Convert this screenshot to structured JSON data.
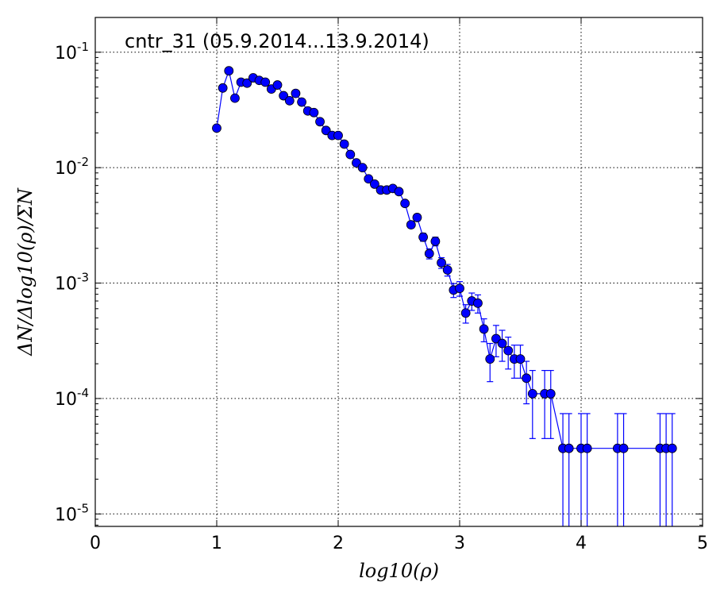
{
  "chart_data": {
    "type": "scatter",
    "title": "cntr_31 (05.9.2014...13.9.2014)",
    "xlabel": "log10(ρ)",
    "ylabel": "ΔN/Δlog10(ρ)/ΣN",
    "xlim": [
      0,
      5
    ],
    "ylim": [
      7.8e-06,
      0.2
    ],
    "yscale": "log",
    "grid": true,
    "marker": "circle",
    "colors": {
      "series": "#0000ff",
      "axes": "#000000",
      "background": "#ffffff"
    },
    "x_ticks": [
      {
        "value": 0,
        "label": "0"
      },
      {
        "value": 1,
        "label": "1"
      },
      {
        "value": 2,
        "label": "2"
      },
      {
        "value": 3,
        "label": "3"
      },
      {
        "value": 4,
        "label": "4"
      },
      {
        "value": 5,
        "label": "5"
      }
    ],
    "y_ticks": [
      {
        "value": 0.1,
        "base": "10",
        "exp": "-1"
      },
      {
        "value": 0.01,
        "base": "10",
        "exp": "-2"
      },
      {
        "value": 0.001,
        "base": "10",
        "exp": "-3"
      },
      {
        "value": 0.0001,
        "base": "10",
        "exp": "-4"
      },
      {
        "value": 1e-05,
        "base": "10",
        "exp": "-5"
      }
    ],
    "series": [
      {
        "x": [
          1.0,
          1.05,
          1.1,
          1.15,
          1.2,
          1.25,
          1.3,
          1.35,
          1.4,
          1.45,
          1.5,
          1.55,
          1.6,
          1.65,
          1.7,
          1.75,
          1.8,
          1.85,
          1.9,
          1.95,
          2.0,
          2.05,
          2.1,
          2.15,
          2.2,
          2.25,
          2.3,
          2.35,
          2.4,
          2.45,
          2.5,
          2.55,
          2.6,
          2.65,
          2.7,
          2.75,
          2.8,
          2.85,
          2.9,
          2.95,
          3.0,
          3.05,
          3.1,
          3.15,
          3.2,
          3.25,
          3.3,
          3.35,
          3.4,
          3.45,
          3.5,
          3.55,
          3.6,
          3.7,
          3.75,
          3.85,
          3.9,
          4.0,
          4.05,
          4.3,
          4.35,
          4.65,
          4.7,
          4.75
        ],
        "y": [
          0.022,
          0.049,
          0.069,
          0.04,
          0.055,
          0.054,
          0.06,
          0.057,
          0.055,
          0.048,
          0.052,
          0.042,
          0.038,
          0.044,
          0.037,
          0.031,
          0.03,
          0.025,
          0.021,
          0.019,
          0.019,
          0.016,
          0.013,
          0.011,
          0.01,
          0.008,
          0.0072,
          0.0064,
          0.0064,
          0.0066,
          0.0062,
          0.0049,
          0.0032,
          0.0037,
          0.0025,
          0.0018,
          0.0023,
          0.0015,
          0.0013,
          0.00087,
          0.0009,
          0.00055,
          0.0007,
          0.00067,
          0.0004,
          0.00022,
          0.00033,
          0.0003,
          0.00026,
          0.00022,
          0.00022,
          0.00015,
          0.00011,
          0.00011,
          0.00011,
          3.7e-05,
          3.7e-05,
          3.7e-05,
          3.7e-05,
          3.7e-05,
          3.7e-05,
          3.7e-05,
          3.7e-05,
          3.7e-05
        ],
        "err": [
          0.001,
          0.0015,
          0.002,
          0.0015,
          0.0015,
          0.0015,
          0.0015,
          0.0015,
          0.0015,
          0.0013,
          0.0014,
          0.0012,
          0.0011,
          0.0012,
          0.0011,
          0.001,
          0.001,
          0.0009,
          0.0008,
          0.0007,
          0.0007,
          0.0006,
          0.0005,
          0.0005,
          0.0004,
          0.0004,
          0.0003,
          0.0003,
          0.0003,
          0.0003,
          0.0003,
          0.00025,
          0.0002,
          0.00025,
          0.0002,
          0.00018,
          0.0002,
          0.00016,
          0.00015,
          0.00012,
          0.00013,
          0.0001,
          0.00012,
          0.00012,
          9e-05,
          8e-05,
          0.0001,
          9e-05,
          8e-05,
          7e-05,
          7e-05,
          6e-05,
          6.5e-05,
          6.5e-05,
          6.5e-05,
          3.7e-05,
          3.7e-05,
          3.7e-05,
          3.7e-05,
          3.7e-05,
          3.7e-05,
          3.7e-05,
          3.7e-05,
          3.7e-05
        ]
      }
    ]
  }
}
